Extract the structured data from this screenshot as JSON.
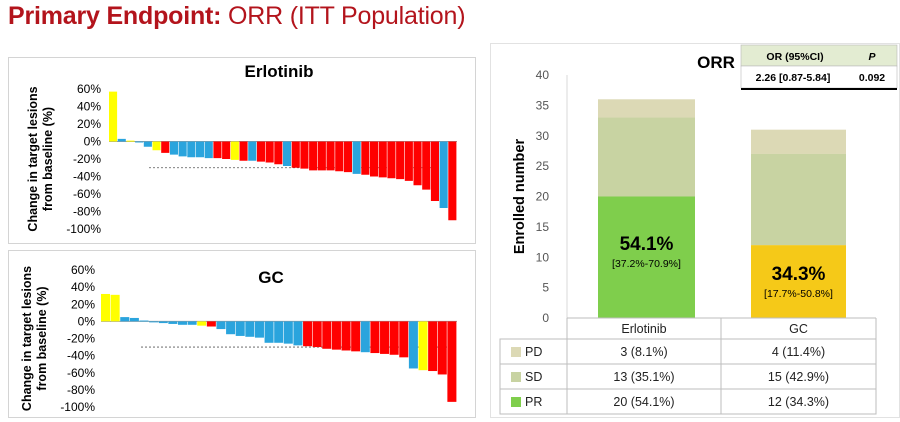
{
  "title": {
    "bold": "Primary Endpoint:",
    "rest": " ORR (ITT Population)"
  },
  "colors": {
    "red": "#ff0000",
    "blue": "#2aa4dd",
    "yellow": "#ffff00",
    "title": "#b3141c",
    "pd": "#dcd9b5",
    "sd": "#c8d3a2",
    "pr": "#7fce4c",
    "pr_gc": "#f5c918"
  },
  "chart_data": [
    {
      "type": "bar",
      "title": "Erlotinib",
      "ylabel": "Change in target lesions from baseline (%)",
      "ylim": [
        -100,
        60
      ],
      "yticks": [
        "60%",
        "40%",
        "20%",
        "0%",
        "-20%",
        "-40%",
        "-60%",
        "-80%",
        "-100%"
      ],
      "ytick_values": [
        60,
        40,
        20,
        0,
        -20,
        -40,
        -60,
        -80,
        -100
      ],
      "reference_line": -30,
      "values": [
        57,
        3,
        1,
        -1,
        -6,
        -10,
        -13,
        -15,
        -17,
        -18,
        -18,
        -19,
        -19,
        -20,
        -21,
        -22,
        -22,
        -23,
        -24,
        -26,
        -28,
        -30,
        -31,
        -33,
        -33,
        -33,
        -34,
        -35,
        -37,
        -38,
        -40,
        -41,
        -42,
        -43,
        -45,
        -50,
        -55,
        -68,
        -76,
        -90
      ],
      "colors": [
        "yellow",
        "blue",
        "yellow",
        "blue",
        "blue",
        "yellow",
        "red",
        "blue",
        "blue",
        "blue",
        "blue",
        "blue",
        "red",
        "red",
        "yellow",
        "red",
        "blue",
        "red",
        "red",
        "red",
        "blue",
        "red",
        "red",
        "red",
        "red",
        "red",
        "red",
        "red",
        "blue",
        "red",
        "red",
        "red",
        "red",
        "red",
        "red",
        "red",
        "red",
        "red",
        "blue",
        "red"
      ]
    },
    {
      "type": "bar",
      "title": "GC",
      "ylabel": "Change in target lesions from baseline (%)",
      "ylim": [
        -100,
        60
      ],
      "yticks": [
        "60%",
        "40%",
        "20%",
        "0%",
        "-20%",
        "-40%",
        "-60%",
        "-80%",
        "-100%"
      ],
      "ytick_values": [
        60,
        40,
        20,
        0,
        -20,
        -40,
        -60,
        -80,
        -100
      ],
      "reference_line": -30,
      "values": [
        32,
        31,
        5,
        4,
        1,
        -1,
        -2,
        -3,
        -4,
        -4,
        -5,
        -6,
        -9,
        -15,
        -17,
        -18,
        -19,
        -25,
        -25,
        -26,
        -28,
        -29,
        -30,
        -32,
        -33,
        -34,
        -35,
        -36,
        -37,
        -38,
        -39,
        -42,
        -55,
        -57,
        -58,
        -62,
        -94
      ],
      "colors": [
        "yellow",
        "yellow",
        "blue",
        "blue",
        "blue",
        "blue",
        "blue",
        "blue",
        "blue",
        "blue",
        "yellow",
        "red",
        "blue",
        "blue",
        "blue",
        "blue",
        "blue",
        "blue",
        "blue",
        "blue",
        "blue",
        "red",
        "red",
        "red",
        "red",
        "red",
        "red",
        "blue",
        "red",
        "red",
        "red",
        "red",
        "blue",
        "yellow",
        "red",
        "red",
        "red"
      ]
    },
    {
      "type": "bar",
      "title": "ORR",
      "ylabel": "Enrolled number",
      "ylim": [
        0,
        40
      ],
      "yticks": [
        "0",
        "5",
        "10",
        "15",
        "20",
        "25",
        "30",
        "35",
        "40"
      ],
      "ytick_values": [
        0,
        5,
        10,
        15,
        20,
        25,
        30,
        35,
        40
      ],
      "categories": [
        "Erlotinib",
        "GC"
      ],
      "series": [
        {
          "name": "PR",
          "values": [
            20,
            12
          ]
        },
        {
          "name": "SD",
          "values": [
            13,
            15
          ]
        },
        {
          "name": "PD",
          "values": [
            3,
            4
          ]
        }
      ],
      "annotations": [
        {
          "pct": "54.1%",
          "ci": "[37.2%-70.9%]"
        },
        {
          "pct": "34.3%",
          "ci": "[17.7%-50.8%]"
        }
      ],
      "stats_table": {
        "header": [
          "OR (95%CI)",
          "P"
        ],
        "row": [
          "2.26 [0.87-5.84]",
          "0.092"
        ]
      },
      "table": {
        "rows": [
          {
            "label": "PD",
            "cells": [
              "3 (8.1%)",
              "4 (11.4%)"
            ]
          },
          {
            "label": "SD",
            "cells": [
              "13 (35.1%)",
              "15 (42.9%)"
            ]
          },
          {
            "label": "PR",
            "cells": [
              "20 (54.1%)",
              "12 (34.3%)"
            ]
          }
        ]
      }
    }
  ]
}
